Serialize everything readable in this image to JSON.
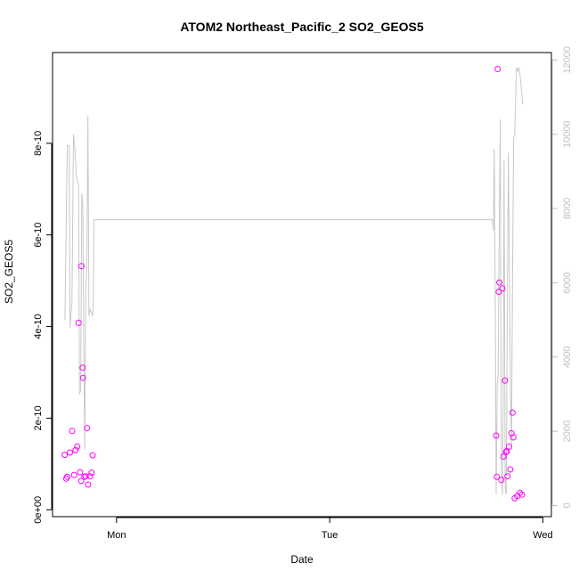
{
  "chart_data": {
    "type": "scatter",
    "title": "ATOM2 Northeast_Pacific_2 SO2_GEOS5",
    "xlabel": "Date",
    "ylabel": "SO2_GEOS5",
    "x_ticks": [
      {
        "value": 1.0,
        "label": "Mon"
      },
      {
        "value": 2.0,
        "label": "Tue"
      },
      {
        "value": 3.0,
        "label": "Wed"
      }
    ],
    "y_ticks": [
      {
        "value": 0,
        "label": "0e+00"
      },
      {
        "value": 2e-10,
        "label": "2e-10"
      },
      {
        "value": 4e-10,
        "label": "4e-10"
      },
      {
        "value": 6e-10,
        "label": "6e-10"
      },
      {
        "value": 8e-10,
        "label": "8e-10"
      }
    ],
    "y2_ticks": [
      {
        "value": 0,
        "label": "0"
      },
      {
        "value": 2000,
        "label": "2000"
      },
      {
        "value": 4000,
        "label": "4000"
      },
      {
        "value": 6000,
        "label": "6000"
      },
      {
        "value": 8000,
        "label": "8000"
      },
      {
        "value": 10000,
        "label": "10000"
      },
      {
        "value": 12000,
        "label": "12000"
      }
    ],
    "xlim": [
      0.7,
      3.04
    ],
    "ylim": [
      -1.5e-11,
      9.98e-10
    ],
    "y2lim": [
      -300,
      12200
    ],
    "grid": false,
    "series": [
      {
        "kind": "points",
        "color": "#ff00ff",
        "x": [
          0.757,
          0.764,
          0.769,
          0.782,
          0.792,
          0.801,
          0.808,
          0.816,
          0.822,
          0.829,
          0.834,
          0.836,
          0.841,
          0.843,
          0.849,
          0.856,
          0.862,
          0.867,
          0.876,
          0.883,
          0.888,
          2.781,
          2.784,
          2.788,
          2.793,
          2.796,
          2.805,
          2.81,
          2.815,
          2.822,
          2.827,
          2.831,
          2.834,
          2.841,
          2.847,
          2.853,
          2.858,
          2.862,
          2.868,
          2.88,
          2.892,
          2.902
        ],
        "y": [
          1.2e-10,
          6.8e-11,
          7.2e-11,
          1.25e-10,
          1.72e-10,
          7.6e-11,
          1.3e-10,
          1.38e-10,
          4.08e-10,
          8.2e-11,
          6.3e-11,
          5.32e-10,
          3.1e-10,
          2.88e-10,
          7.2e-11,
          7.3e-11,
          1.78e-10,
          5.5e-11,
          7.3e-11,
          8.1e-11,
          1.19e-10,
          1.62e-10,
          7.2e-11,
          9.62e-10,
          4.76e-10,
          4.96e-10,
          6.5e-11,
          4.83e-10,
          1.16e-10,
          2.82e-10,
          1.26e-10,
          1.28e-10,
          7.3e-11,
          1.38e-10,
          8.8e-11,
          1.67e-10,
          2.12e-10,
          1.58e-10,
          2.5e-11,
          3e-11,
          3.7e-11,
          3.3e-11
        ]
      },
      {
        "kind": "line",
        "axis": "right",
        "color": "#c8c8c8",
        "x": [
          0.758,
          0.769,
          0.778,
          0.782,
          0.791,
          0.798,
          0.805,
          0.812,
          0.816,
          0.822,
          0.826,
          0.832,
          0.837,
          0.842,
          0.847,
          0.851,
          0.856,
          0.861,
          0.866,
          0.871,
          0.876,
          0.882,
          0.887,
          0.891,
          0.894,
          2.763,
          2.768,
          2.772,
          2.777,
          2.781,
          2.786,
          2.79,
          2.795,
          2.8,
          2.805,
          2.81,
          2.814,
          2.818,
          2.823,
          2.828,
          2.833,
          2.838,
          2.843,
          2.848,
          2.853,
          2.858,
          2.863,
          2.868,
          2.876,
          2.882,
          2.888,
          2.893,
          2.898,
          2.905
        ],
        "y": [
          5000,
          9700,
          9700,
          4800,
          5500,
          10000,
          9600,
          8800,
          8800,
          8600,
          3000,
          3100,
          8400,
          8100,
          3800,
          1500,
          5800,
          6400,
          10500,
          5100,
          5300,
          5200,
          5100,
          5300,
          7700,
          7700,
          7400,
          9600,
          5000,
          300,
          3300,
          3500,
          7300,
          10400,
          1000,
          300,
          2800,
          9300,
          500,
          300,
          5000,
          9500,
          6400,
          3100,
          1500,
          6200,
          9900,
          10000,
          11800,
          11700,
          11800,
          11600,
          11300,
          10800
        ]
      }
    ]
  }
}
